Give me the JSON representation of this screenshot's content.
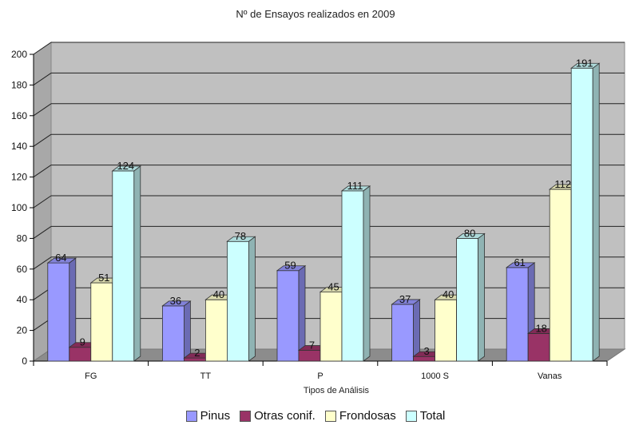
{
  "chart_data": {
    "type": "bar",
    "title": "Nº de Ensayos realizados en 2009",
    "xlabel": "Tipos de Análisis",
    "ylabel": "",
    "ylim": [
      0,
      200
    ],
    "yticks": [
      0,
      20,
      40,
      60,
      80,
      100,
      120,
      140,
      160,
      180,
      200
    ],
    "categories": [
      "FG",
      "TT",
      "P",
      "1000 S",
      "Vanas"
    ],
    "series": [
      {
        "name": "Pinus",
        "color": "#9999ff",
        "values": [
          64,
          36,
          59,
          37,
          61
        ]
      },
      {
        "name": "Otras conif.",
        "color": "#993366",
        "values": [
          9,
          2,
          7,
          3,
          18
        ]
      },
      {
        "name": "Frondosas",
        "color": "#ffffcc",
        "values": [
          51,
          40,
          45,
          40,
          112
        ]
      },
      {
        "name": "Total",
        "color": "#ccffff",
        "values": [
          124,
          78,
          111,
          80,
          191
        ]
      }
    ],
    "grid": true,
    "legend_position": "bottom",
    "wall_color": "#c0c0c0"
  }
}
